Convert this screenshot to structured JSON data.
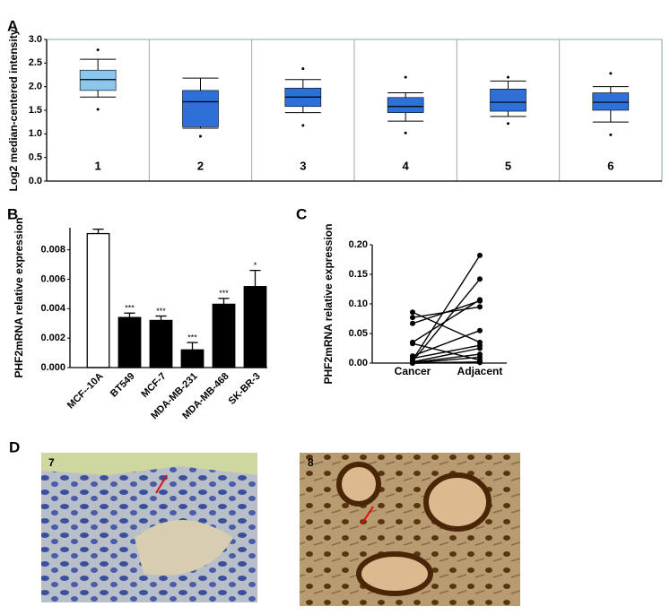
{
  "chart_data": [
    {
      "type": "box",
      "panel_label": "A",
      "y_label": "Log2 median-centered intensity",
      "categories": [
        "1",
        "2",
        "3",
        "4",
        "5",
        "6"
      ],
      "colors": [
        "#8cc6ec",
        "#2f6fd8",
        "#2f6fd8",
        "#2f6fd8",
        "#2f6fd8",
        "#2f6fd8"
      ],
      "boxes": [
        {
          "min": 1.78,
          "q1": 1.92,
          "median": 2.15,
          "q3": 2.35,
          "max": 2.58,
          "outliers": [
            2.78,
            1.52
          ]
        },
        {
          "min": 1.12,
          "q1": 1.15,
          "median": 1.68,
          "q3": 1.92,
          "max": 2.18,
          "outliers": [
            0.95
          ]
        },
        {
          "min": 1.45,
          "q1": 1.58,
          "median": 1.78,
          "q3": 1.97,
          "max": 2.15,
          "outliers": [
            2.38,
            1.18
          ]
        },
        {
          "min": 1.27,
          "q1": 1.45,
          "median": 1.58,
          "q3": 1.77,
          "max": 1.87,
          "outliers": [
            2.2,
            1.02
          ]
        },
        {
          "min": 1.37,
          "q1": 1.48,
          "median": 1.67,
          "q3": 1.95,
          "max": 2.12,
          "outliers": [
            2.2,
            1.22
          ]
        },
        {
          "min": 1.25,
          "q1": 1.5,
          "median": 1.67,
          "q3": 1.87,
          "max": 2.0,
          "outliers": [
            2.28,
            0.98
          ]
        }
      ],
      "ylim": [
        0,
        3
      ],
      "yticks": [
        {
          "value": 0,
          "label": "0.0"
        },
        0.5,
        {
          "value": 1,
          "label": "1.0"
        },
        1.5,
        {
          "value": 2,
          "label": "2.0"
        },
        2.5,
        {
          "value": 3,
          "label": "3.0"
        }
      ]
    },
    {
      "type": "bar",
      "panel_label": "B",
      "y_label": "PHF2mRNA relative expression",
      "categories": [
        "MCF--10A",
        "BT549",
        "MCF-7",
        "MDA-MB-231",
        "MDA-MB-468",
        "SK-BR-3"
      ],
      "values": [
        0.0091,
        0.0034,
        0.0032,
        0.0012,
        0.0043,
        0.0055
      ],
      "errors": [
        0.0003,
        0.0003,
        0.0003,
        0.0005,
        0.0004,
        0.0011
      ],
      "annotations": [
        null,
        "***",
        "***",
        "***",
        "***",
        "*"
      ],
      "colors": [
        "#ffffff",
        "#000000",
        "#000000",
        "#000000",
        "#000000",
        "#000000"
      ],
      "ylim": [
        0,
        0.0095
      ],
      "yticks": [
        {
          "value": 0,
          "label": "0.000"
        },
        {
          "value": 0.002,
          "label": "0.002"
        },
        {
          "value": 0.004,
          "label": "0.004"
        },
        {
          "value": 0.006,
          "label": "0.006"
        },
        {
          "value": 0.008,
          "label": "0.008"
        }
      ]
    },
    {
      "type": "paired",
      "panel_label": "C",
      "y_label": "PHF2mRNA relative expression",
      "categories": [
        "Cancer",
        "Adjacent"
      ],
      "pairs": [
        [
          0.086,
          0.035
        ],
        [
          0.077,
          0.095
        ],
        [
          0.067,
          0.105
        ],
        [
          0.035,
          0.107
        ],
        [
          0.033,
          0.005
        ],
        [
          0.012,
          0.055
        ],
        [
          0.008,
          0.03
        ],
        [
          0.005,
          0.182
        ],
        [
          0.003,
          0.142
        ],
        [
          0.002,
          0.025
        ],
        [
          0.001,
          0.015
        ],
        [
          0,
          0.01
        ],
        [
          0,
          0.002
        ],
        [
          0,
          0.001
        ]
      ],
      "ylim": [
        0,
        0.2
      ],
      "yticks": [
        {
          "value": 0,
          "label": "0.00"
        },
        {
          "value": 0.05,
          "label": "0.05"
        },
        {
          "value": 0.1,
          "label": "0.10"
        },
        {
          "value": 0.15,
          "label": "0.15"
        },
        {
          "value": 0.2,
          "label": "0.20"
        }
      ]
    }
  ],
  "images": {
    "panel_label": "D",
    "labels": [
      "7",
      "8"
    ]
  }
}
